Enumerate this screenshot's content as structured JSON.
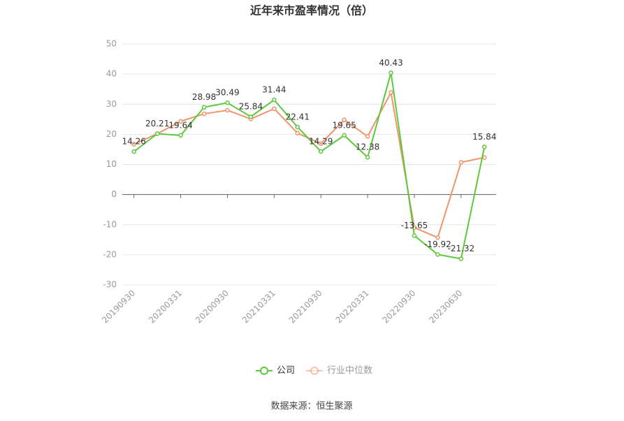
{
  "chart_data": {
    "type": "line",
    "title": "近年来市盈率情况（倍）",
    "categories": [
      "20190930",
      null,
      "20200331",
      null,
      "20200930",
      null,
      "20210331",
      null,
      "20210930",
      null,
      "20220331",
      null,
      "20220930",
      null,
      "20230630",
      null
    ],
    "series": [
      {
        "name": "公司",
        "color": "#5cc83c",
        "values": [
          14.26,
          20.21,
          19.64,
          28.98,
          30.49,
          25.84,
          31.44,
          22.41,
          14.29,
          19.65,
          12.38,
          40.43,
          -13.65,
          -19.92,
          -21.32,
          15.84
        ],
        "show_labels": true
      },
      {
        "name": "行业中位数",
        "color": "#f0936a",
        "values": [
          16.7,
          20.2,
          24.3,
          26.8,
          28.0,
          25.1,
          28.5,
          20.4,
          16.9,
          24.8,
          19.3,
          33.9,
          -11.0,
          -14.3,
          10.7,
          12.3
        ],
        "show_labels": false
      }
    ],
    "ylim": [
      -30,
      50
    ],
    "yticks": [
      -30,
      -20,
      -10,
      0,
      10,
      20,
      30,
      40,
      50
    ],
    "grid": true,
    "legend": "bottom",
    "source": "数据来源：恒生聚源"
  }
}
